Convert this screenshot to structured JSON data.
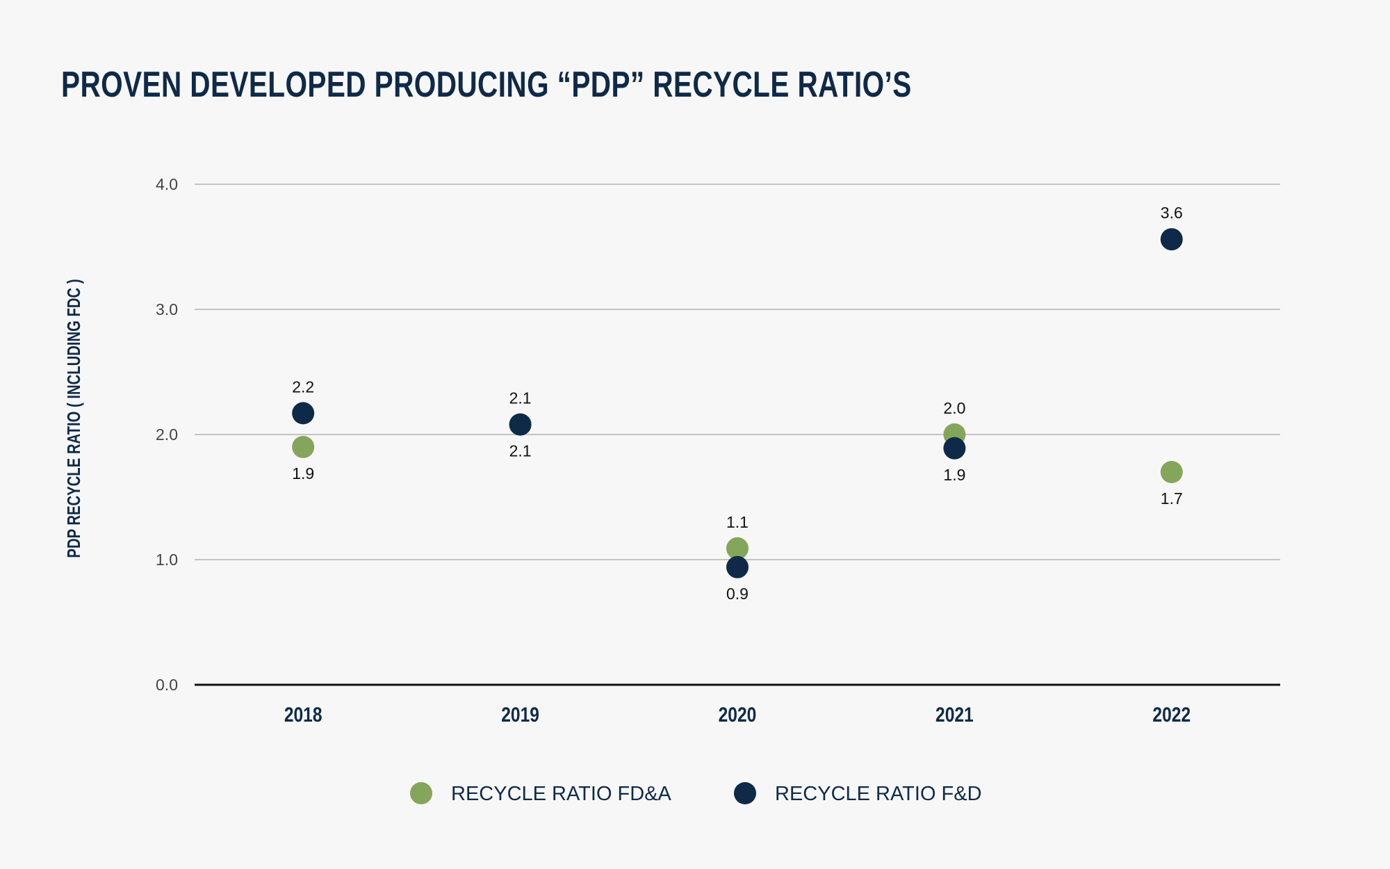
{
  "chart_data": {
    "type": "scatter",
    "title": "PROVEN DEVELOPED PRODUCING “PDP” RECYCLE RATIO’S",
    "ylabel": "PDP RECYCLE RATIO ( INCLUDING FDC )",
    "xlabel": "",
    "categories": [
      "2018",
      "2019",
      "2020",
      "2021",
      "2022"
    ],
    "ylim": [
      0,
      4
    ],
    "yticks": [
      "0.0",
      "1.0",
      "2.0",
      "3.0",
      "4.0"
    ],
    "grid": true,
    "legend_position": "bottom-center",
    "series": [
      {
        "name": "RECYCLE RATIO FD&A",
        "color": "#84a65a",
        "values": [
          1.9,
          2.08,
          1.09,
          2.0,
          1.7
        ],
        "labels": [
          "1.9",
          "2.1",
          "1.1",
          "2.0",
          "1.7"
        ],
        "label_position": [
          "below",
          "below",
          "above",
          "above",
          "below"
        ]
      },
      {
        "name": "RECYCLE RATIO F&D",
        "color": "#0f2a48",
        "values": [
          2.17,
          2.08,
          0.94,
          1.89,
          3.56
        ],
        "labels": [
          "2.2",
          "2.1",
          "0.9",
          "1.9",
          "3.6"
        ],
        "label_position": [
          "above",
          "above",
          "below",
          "below",
          "above"
        ]
      }
    ]
  }
}
